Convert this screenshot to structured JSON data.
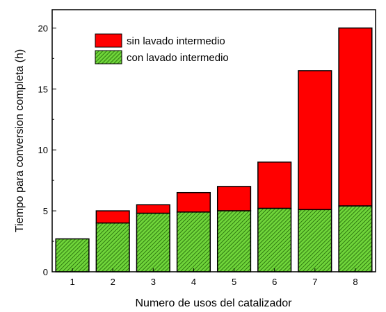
{
  "chart_data": {
    "type": "bar",
    "stacked": true,
    "title": "",
    "xlabel": "Numero de usos del catalizador",
    "ylabel": "Tiempo para conversion completa (h)",
    "categories": [
      "1",
      "2",
      "3",
      "4",
      "5",
      "6",
      "7",
      "8"
    ],
    "ylim": [
      0,
      21.5
    ],
    "yticks": [
      0,
      5,
      10,
      15,
      20
    ],
    "grid": false,
    "legend_position": "top-left",
    "series": [
      {
        "name": "con lavado intermedio",
        "color": "#4caf1e",
        "pattern": "hatched",
        "values": [
          2.7,
          4.0,
          4.8,
          4.9,
          5.0,
          5.2,
          5.1,
          5.4
        ]
      },
      {
        "name": "sin lavado intermedio",
        "color": "#ff0000",
        "pattern": "solid",
        "totals": [
          2.7,
          5.0,
          5.5,
          6.5,
          7.0,
          9.0,
          16.5,
          20.0
        ]
      }
    ]
  }
}
